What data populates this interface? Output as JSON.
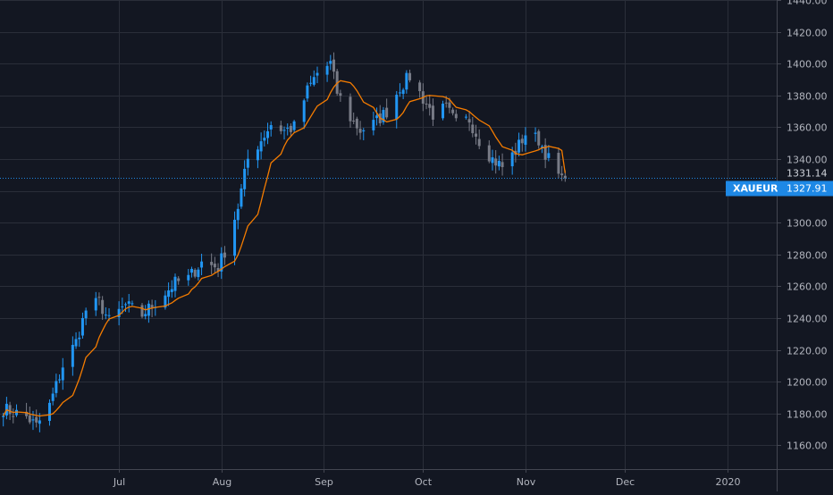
{
  "symbol": "XAUEUR",
  "last_price_label": "1327.91",
  "ma_value_label": "1331.14",
  "colors": {
    "background": "#131722",
    "grid": "#2a2e39",
    "up": "#2196f3",
    "down": "#787b86",
    "ma": "#f57c00",
    "last_price": "#1e88e5"
  },
  "chart_data": {
    "type": "candlestick",
    "ylim": [
      1145,
      1440
    ],
    "y_ticks": [
      "1440.00",
      "1420.00",
      "1400.00",
      "1380.00",
      "1360.00",
      "1340.00",
      "1320.00",
      "1300.00",
      "1280.00",
      "1260.00",
      "1240.00",
      "1220.00",
      "1200.00",
      "1180.00",
      "1160.00"
    ],
    "x_ticks": [
      "Jul",
      "Aug",
      "Sep",
      "Oct",
      "Nov",
      "Dec",
      "2020"
    ],
    "x_tick_dates": [
      "2019-07-01",
      "2019-08-01",
      "2019-09-01",
      "2019-10-01",
      "2019-11-01",
      "2019-12-01",
      "2020-01-01"
    ],
    "x_range_dates": [
      "2019-05-26",
      "2020-01-16"
    ],
    "last_price": 1327.91,
    "moving_average_last": 1331.14,
    "anchors": [
      [
        "2019-05-27",
        1183
      ],
      [
        "2019-06-03",
        1178
      ],
      [
        "2019-06-06",
        1172
      ],
      [
        "2019-06-10",
        1185
      ],
      [
        "2019-06-14",
        1210
      ],
      [
        "2019-06-18",
        1225
      ],
      [
        "2019-06-21",
        1245
      ],
      [
        "2019-06-25",
        1250
      ],
      [
        "2019-06-28",
        1238
      ],
      [
        "2019-07-03",
        1248
      ],
      [
        "2019-07-08",
        1242
      ],
      [
        "2019-07-12",
        1250
      ],
      [
        "2019-07-18",
        1262
      ],
      [
        "2019-07-22",
        1265
      ],
      [
        "2019-07-26",
        1275
      ],
      [
        "2019-07-31",
        1272
      ],
      [
        "2019-08-02",
        1282
      ],
      [
        "2019-08-06",
        1310
      ],
      [
        "2019-08-09",
        1340
      ],
      [
        "2019-08-13",
        1352
      ],
      [
        "2019-08-16",
        1362
      ],
      [
        "2019-08-20",
        1358
      ],
      [
        "2019-08-23",
        1360
      ],
      [
        "2019-08-27",
        1383
      ],
      [
        "2019-08-30",
        1394
      ],
      [
        "2019-09-03",
        1400
      ],
      [
        "2019-09-05",
        1382
      ],
      [
        "2019-09-09",
        1366
      ],
      [
        "2019-09-12",
        1358
      ],
      [
        "2019-09-16",
        1362
      ],
      [
        "2019-09-20",
        1370
      ],
      [
        "2019-09-24",
        1385
      ],
      [
        "2019-09-27",
        1392
      ],
      [
        "2019-10-01",
        1378
      ],
      [
        "2019-10-04",
        1368
      ],
      [
        "2019-10-08",
        1372
      ],
      [
        "2019-10-11",
        1362
      ],
      [
        "2019-10-15",
        1365
      ],
      [
        "2019-10-18",
        1352
      ],
      [
        "2019-10-22",
        1340
      ],
      [
        "2019-10-25",
        1335
      ],
      [
        "2019-10-29",
        1345
      ],
      [
        "2019-11-01",
        1356
      ],
      [
        "2019-11-05",
        1352
      ],
      [
        "2019-11-08",
        1340
      ],
      [
        "2019-11-12",
        1326
      ],
      [
        "2019-11-13",
        1328
      ]
    ]
  }
}
